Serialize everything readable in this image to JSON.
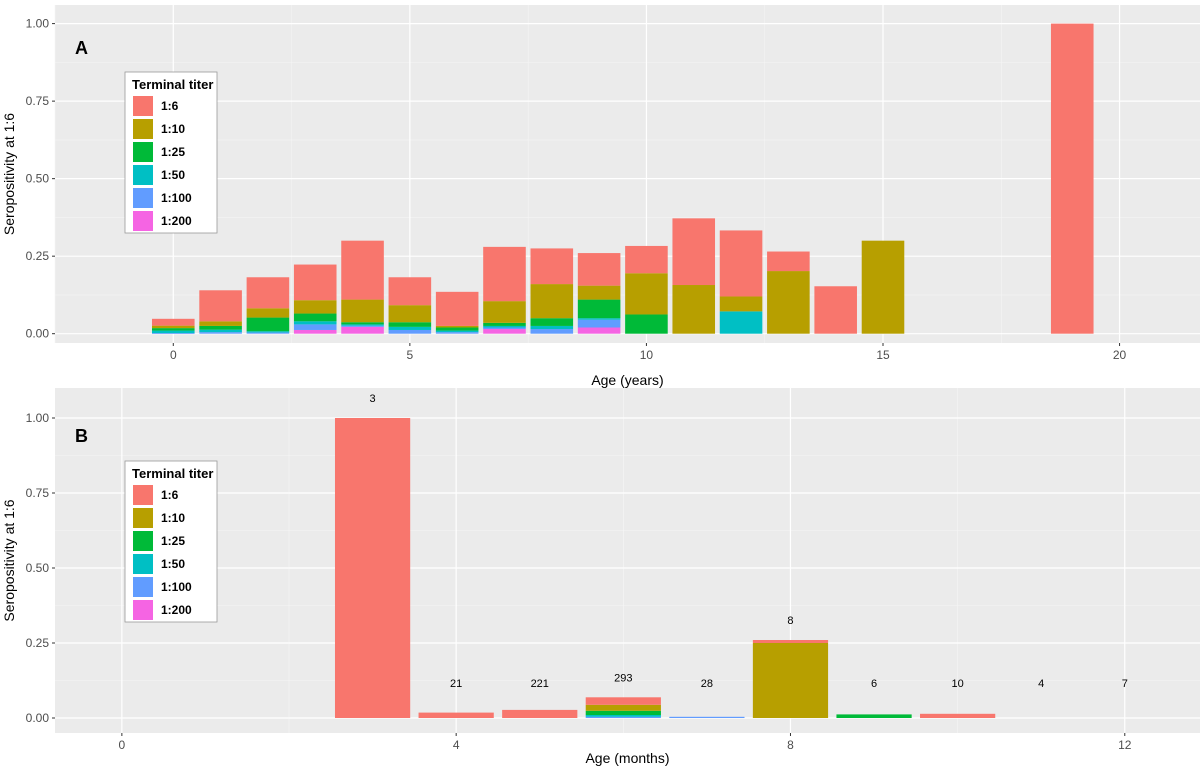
{
  "chart_data": [
    {
      "panel": "A",
      "type": "bar",
      "stacked": true,
      "xlabel": "Age (years)",
      "ylabel": "Seropositivity at 1:6",
      "xlim": [
        -2.5,
        21.7
      ],
      "ylim": [
        -0.03,
        1.06
      ],
      "xticks": [
        0,
        5,
        10,
        15,
        20
      ],
      "yticks": [
        0,
        0.25,
        0.5,
        0.75,
        1
      ],
      "ytick_labels": [
        "0.00",
        "0.25",
        "0.50",
        "0.75",
        "1.00"
      ],
      "bar_width": 0.9,
      "legend": {
        "title": "Terminal titer",
        "placement": "top-left",
        "entries": [
          "1:6",
          "1:10",
          "1:25",
          "1:50",
          "1:100",
          "1:200"
        ]
      },
      "colors": {
        "1:6": "#F8766D",
        "1:10": "#B79F00",
        "1:25": "#00BA38",
        "1:50": "#00BFC4",
        "1:100": "#619CFF",
        "1:200": "#F564E3"
      },
      "grid": true,
      "x": [
        0,
        1,
        2,
        3,
        4,
        5,
        6,
        7,
        8,
        9,
        10,
        11,
        12,
        13,
        14,
        15,
        19
      ],
      "series": [
        {
          "name": "1:200",
          "values": [
            0,
            0,
            0,
            0.012,
            0.022,
            0,
            0,
            0.015,
            0,
            0.02,
            0,
            0,
            0,
            0,
            0,
            0,
            0
          ]
        },
        {
          "name": "1:100",
          "values": [
            0.002,
            0.005,
            0.004,
            0.018,
            0.004,
            0.012,
            0.005,
            0.005,
            0.015,
            0.025,
            0,
            0,
            0,
            0,
            0,
            0,
            0
          ]
        },
        {
          "name": "1:50",
          "values": [
            0.008,
            0.008,
            0.004,
            0.01,
            0.004,
            0.01,
            0.005,
            0.005,
            0.01,
            0.005,
            0,
            0,
            0.072,
            0,
            0,
            0,
            0
          ]
        },
        {
          "name": "1:25",
          "values": [
            0.008,
            0.012,
            0.044,
            0.025,
            0.007,
            0.015,
            0.01,
            0.01,
            0.025,
            0.06,
            0.062,
            0,
            0,
            0,
            0,
            0,
            0
          ]
        },
        {
          "name": "1:10",
          "values": [
            0.008,
            0.015,
            0.03,
            0.043,
            0.073,
            0.055,
            0.005,
            0.07,
            0.11,
            0.045,
            0.133,
            0.157,
            0.048,
            0.202,
            0,
            0.3,
            0
          ]
        },
        {
          "name": "1:6",
          "values": [
            0.022,
            0.1,
            0.1,
            0.115,
            0.19,
            0.09,
            0.11,
            0.175,
            0.115,
            0.105,
            0.088,
            0.215,
            0.213,
            0.063,
            0.153,
            0,
            1.0
          ]
        }
      ]
    },
    {
      "panel": "B",
      "type": "bar",
      "stacked": true,
      "xlabel": "Age (months)",
      "ylabel": "Seropositivity at 1:6",
      "xlim": [
        -0.8,
        12.9
      ],
      "ylim": [
        -0.05,
        1.1
      ],
      "xticks": [
        0,
        4,
        8,
        12
      ],
      "yticks": [
        0,
        0.25,
        0.5,
        0.75,
        1
      ],
      "ytick_labels": [
        "0.00",
        "0.25",
        "0.50",
        "0.75",
        "1.00"
      ],
      "bar_width": 0.9,
      "legend": {
        "title": "Terminal titer",
        "placement": "top-left",
        "entries": [
          "1:6",
          "1:10",
          "1:25",
          "1:50",
          "1:100",
          "1:200"
        ]
      },
      "colors": {
        "1:6": "#F8766D",
        "1:10": "#B79F00",
        "1:25": "#00BA38",
        "1:50": "#00BFC4",
        "1:100": "#619CFF",
        "1:200": "#F564E3"
      },
      "grid": true,
      "x": [
        3,
        4,
        5,
        6,
        7,
        8,
        9,
        10,
        11,
        12
      ],
      "counts": [
        "3",
        "21",
        "221",
        "293",
        "28",
        "8",
        "6",
        "10",
        "4",
        "7"
      ],
      "series": [
        {
          "name": "1:200",
          "values": [
            0,
            0,
            0,
            0,
            0,
            0,
            0,
            0,
            0,
            0
          ]
        },
        {
          "name": "1:100",
          "values": [
            0,
            0,
            0,
            0.004,
            0.004,
            0,
            0,
            0,
            0,
            0
          ]
        },
        {
          "name": "1:50",
          "values": [
            0,
            0,
            0,
            0.006,
            0,
            0,
            0,
            0,
            0,
            0
          ]
        },
        {
          "name": "1:25",
          "values": [
            0,
            0,
            0,
            0.014,
            0,
            0,
            0.012,
            0,
            0,
            0
          ]
        },
        {
          "name": "1:10",
          "values": [
            0,
            0,
            0,
            0.02,
            0,
            0.25,
            0,
            0,
            0,
            0
          ]
        },
        {
          "name": "1:6",
          "values": [
            1.0,
            0.018,
            0.027,
            0.025,
            0,
            0.01,
            0,
            0.014,
            0,
            0
          ]
        }
      ]
    }
  ]
}
